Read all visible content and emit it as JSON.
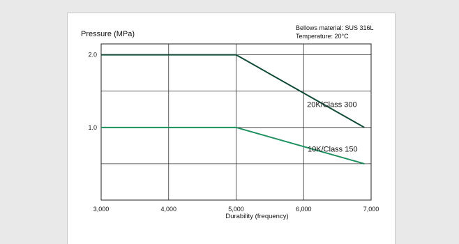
{
  "chart_data": {
    "type": "line",
    "ylabel": "Pressure (MPa)",
    "xlabel": "Durability (frequency)",
    "notes": [
      "Bellows material: SUS 316L",
      "Temperature: 20°C"
    ],
    "xlim": [
      3000,
      7000
    ],
    "ylim": [
      0,
      2.15
    ],
    "x_ticks": [
      3000,
      4000,
      5000,
      6000,
      7000
    ],
    "x_tick_labels": [
      "3,000",
      "4,000",
      "5,000",
      "6,000",
      "7,000"
    ],
    "y_ticks": [
      1.0,
      2.0
    ],
    "y_tick_labels": [
      "1.0",
      "2.0"
    ],
    "y_gridlines": [
      0.5,
      1.0,
      1.5,
      2.0
    ],
    "grid": true,
    "series": [
      {
        "name": "20K/Class 300",
        "color": "#0f4a33",
        "points": [
          [
            3000,
            2.0
          ],
          [
            5000,
            2.0
          ],
          [
            6900,
            1.0
          ]
        ]
      },
      {
        "name": "10K/Class 150",
        "color": "#1b8f5c",
        "points": [
          [
            3000,
            1.0
          ],
          [
            5000,
            1.0
          ],
          [
            6900,
            0.5
          ]
        ]
      }
    ]
  }
}
